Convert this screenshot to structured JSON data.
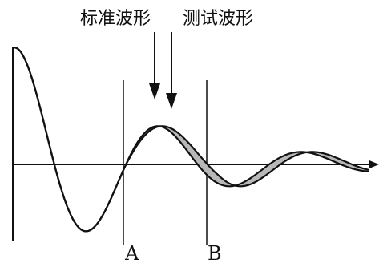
{
  "labels": {
    "standard_waveform": "标准波形",
    "test_waveform": "测试波形",
    "marker_a": "A",
    "marker_b": "B"
  },
  "colors": {
    "line": "#111111",
    "fill_between": "#b8b8b8",
    "background": "#ffffff"
  }
}
